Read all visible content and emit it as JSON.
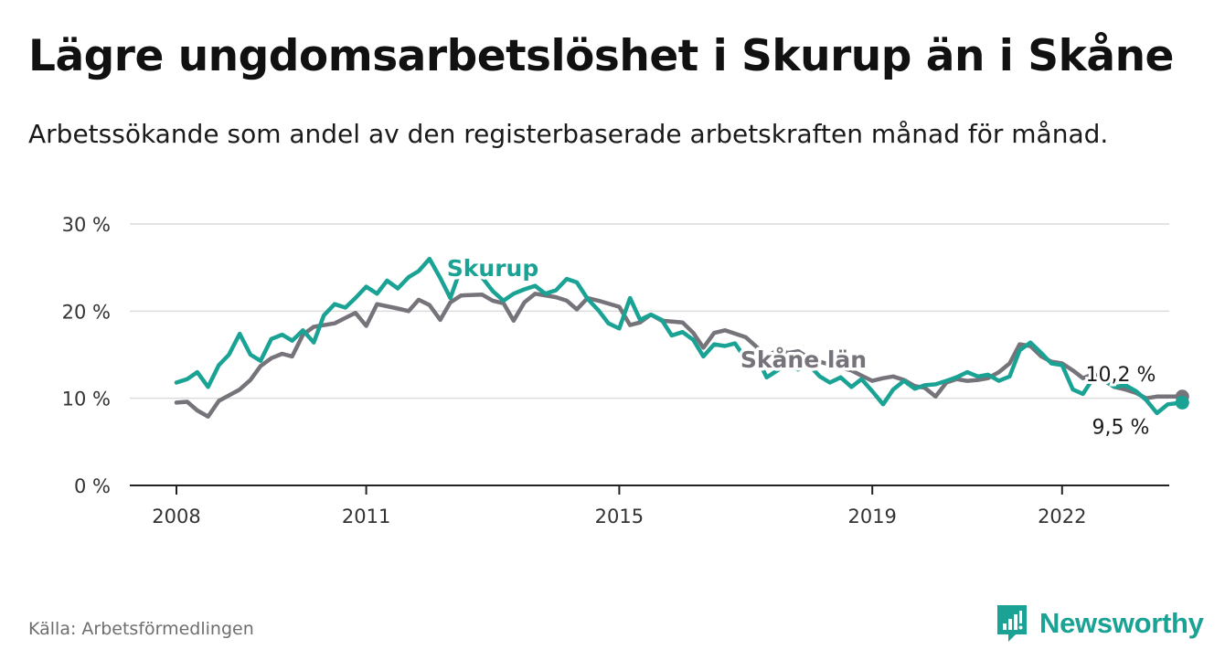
{
  "chart_data": {
    "type": "line",
    "title": "Lägre ungdomsarbetslöshet i Skurup än i Skåne",
    "subtitle": "Arbetssökande som andel av den registerbaserade arbetskraften månad för månad.",
    "xlabel": "",
    "ylabel": "",
    "ylim": [
      0,
      30
    ],
    "xlim": [
      2007.6,
      2023.8
    ],
    "y_ticks": [
      {
        "value": 0,
        "label": "0 %"
      },
      {
        "value": 10,
        "label": "10 %"
      },
      {
        "value": 20,
        "label": "20 %"
      },
      {
        "value": 30,
        "label": "30 %"
      }
    ],
    "x_ticks": [
      {
        "value": 2008,
        "label": "2008"
      },
      {
        "value": 2011,
        "label": "2011"
      },
      {
        "value": 2015,
        "label": "2015"
      },
      {
        "value": 2019,
        "label": "2019"
      },
      {
        "value": 2022,
        "label": "2022"
      }
    ],
    "grid": true,
    "series": [
      {
        "name": "Skåne län",
        "color": "#76737a",
        "end_label": "10,2 %",
        "points": [
          [
            2008.0,
            9.5
          ],
          [
            2008.17,
            9.6
          ],
          [
            2008.33,
            8.6
          ],
          [
            2008.5,
            7.9
          ],
          [
            2008.67,
            9.7
          ],
          [
            2009.0,
            11.0
          ],
          [
            2009.17,
            12.1
          ],
          [
            2009.33,
            13.7
          ],
          [
            2009.5,
            14.6
          ],
          [
            2009.67,
            15.1
          ],
          [
            2009.83,
            14.8
          ],
          [
            2010.0,
            17.3
          ],
          [
            2010.17,
            18.2
          ],
          [
            2010.5,
            18.6
          ],
          [
            2010.83,
            19.8
          ],
          [
            2011.0,
            18.3
          ],
          [
            2011.17,
            20.8
          ],
          [
            2011.5,
            20.3
          ],
          [
            2011.67,
            20.0
          ],
          [
            2011.83,
            21.3
          ],
          [
            2012.0,
            20.7
          ],
          [
            2012.17,
            19.0
          ],
          [
            2012.33,
            21.0
          ],
          [
            2012.5,
            21.8
          ],
          [
            2012.83,
            21.9
          ],
          [
            2013.0,
            21.2
          ],
          [
            2013.17,
            20.9
          ],
          [
            2013.33,
            18.9
          ],
          [
            2013.5,
            21.0
          ],
          [
            2013.67,
            22.0
          ],
          [
            2014.0,
            21.6
          ],
          [
            2014.17,
            21.2
          ],
          [
            2014.33,
            20.2
          ],
          [
            2014.5,
            21.5
          ],
          [
            2014.67,
            21.2
          ],
          [
            2015.0,
            20.5
          ],
          [
            2015.17,
            18.4
          ],
          [
            2015.33,
            18.7
          ],
          [
            2015.5,
            19.6
          ],
          [
            2015.67,
            18.9
          ],
          [
            2016.0,
            18.7
          ],
          [
            2016.17,
            17.5
          ],
          [
            2016.33,
            15.8
          ],
          [
            2016.5,
            17.5
          ],
          [
            2016.67,
            17.8
          ],
          [
            2017.0,
            17.0
          ],
          [
            2017.17,
            15.9
          ],
          [
            2017.33,
            14.8
          ],
          [
            2017.5,
            15.5
          ],
          [
            2017.67,
            15.2
          ],
          [
            2017.83,
            15.4
          ],
          [
            2018.0,
            14.6
          ],
          [
            2018.17,
            14.2
          ],
          [
            2018.5,
            13.5
          ],
          [
            2018.67,
            13.2
          ],
          [
            2018.83,
            12.6
          ],
          [
            2019.0,
            12.0
          ],
          [
            2019.17,
            12.3
          ],
          [
            2019.33,
            12.5
          ],
          [
            2019.5,
            12.1
          ],
          [
            2019.67,
            11.4
          ],
          [
            2019.83,
            11.2
          ],
          [
            2020.0,
            10.2
          ],
          [
            2020.17,
            11.8
          ],
          [
            2020.33,
            12.2
          ],
          [
            2020.5,
            12.0
          ],
          [
            2020.67,
            12.1
          ],
          [
            2020.83,
            12.3
          ],
          [
            2021.0,
            13.0
          ],
          [
            2021.17,
            14.0
          ],
          [
            2021.33,
            16.2
          ],
          [
            2021.5,
            16.0
          ],
          [
            2021.67,
            14.8
          ],
          [
            2021.83,
            14.2
          ],
          [
            2022.0,
            14.0
          ],
          [
            2022.17,
            13.2
          ],
          [
            2022.33,
            12.3
          ],
          [
            2022.5,
            12.8
          ],
          [
            2022.67,
            12.0
          ],
          [
            2022.83,
            11.3
          ],
          [
            2023.0,
            11.0
          ],
          [
            2023.17,
            10.6
          ],
          [
            2023.33,
            10.0
          ],
          [
            2023.5,
            10.2
          ],
          [
            2023.67,
            10.2
          ],
          [
            2023.9,
            10.2
          ]
        ]
      },
      {
        "name": "Skurup",
        "color": "#1aa394",
        "end_label": "9,5 %",
        "points": [
          [
            2008.0,
            11.8
          ],
          [
            2008.17,
            12.2
          ],
          [
            2008.33,
            13.0
          ],
          [
            2008.5,
            11.3
          ],
          [
            2008.67,
            13.8
          ],
          [
            2008.83,
            15.0
          ],
          [
            2009.0,
            17.4
          ],
          [
            2009.17,
            15.0
          ],
          [
            2009.33,
            14.3
          ],
          [
            2009.5,
            16.8
          ],
          [
            2009.67,
            17.3
          ],
          [
            2009.83,
            16.6
          ],
          [
            2010.0,
            17.8
          ],
          [
            2010.17,
            16.4
          ],
          [
            2010.33,
            19.5
          ],
          [
            2010.5,
            20.8
          ],
          [
            2010.67,
            20.4
          ],
          [
            2010.83,
            21.5
          ],
          [
            2011.0,
            22.8
          ],
          [
            2011.17,
            22.0
          ],
          [
            2011.33,
            23.5
          ],
          [
            2011.5,
            22.6
          ],
          [
            2011.67,
            23.9
          ],
          [
            2011.83,
            24.6
          ],
          [
            2012.0,
            26.0
          ],
          [
            2012.17,
            23.8
          ],
          [
            2012.33,
            21.5
          ],
          [
            2012.5,
            25.0
          ],
          [
            2012.67,
            24.1
          ],
          [
            2012.83,
            23.9
          ],
          [
            2013.0,
            22.3
          ],
          [
            2013.17,
            21.2
          ],
          [
            2013.33,
            22.0
          ],
          [
            2013.5,
            22.5
          ],
          [
            2013.67,
            22.9
          ],
          [
            2013.83,
            22.0
          ],
          [
            2014.0,
            22.4
          ],
          [
            2014.17,
            23.7
          ],
          [
            2014.33,
            23.3
          ],
          [
            2014.5,
            21.4
          ],
          [
            2014.67,
            20.1
          ],
          [
            2014.83,
            18.6
          ],
          [
            2015.0,
            18.0
          ],
          [
            2015.17,
            21.5
          ],
          [
            2015.33,
            19.0
          ],
          [
            2015.5,
            19.6
          ],
          [
            2015.67,
            19.0
          ],
          [
            2015.83,
            17.2
          ],
          [
            2016.0,
            17.6
          ],
          [
            2016.17,
            16.7
          ],
          [
            2016.33,
            14.8
          ],
          [
            2016.5,
            16.2
          ],
          [
            2016.67,
            16.0
          ],
          [
            2016.83,
            16.3
          ],
          [
            2017.0,
            14.5
          ],
          [
            2017.17,
            14.8
          ],
          [
            2017.33,
            12.4
          ],
          [
            2017.5,
            13.2
          ],
          [
            2017.67,
            14.2
          ],
          [
            2017.83,
            13.3
          ],
          [
            2018.0,
            13.8
          ],
          [
            2018.17,
            12.5
          ],
          [
            2018.33,
            11.8
          ],
          [
            2018.5,
            12.4
          ],
          [
            2018.67,
            11.3
          ],
          [
            2018.83,
            12.2
          ],
          [
            2019.0,
            10.8
          ],
          [
            2019.17,
            9.3
          ],
          [
            2019.33,
            11.0
          ],
          [
            2019.5,
            12.0
          ],
          [
            2019.67,
            11.1
          ],
          [
            2019.83,
            11.5
          ],
          [
            2020.0,
            11.6
          ],
          [
            2020.17,
            12.0
          ],
          [
            2020.33,
            12.4
          ],
          [
            2020.5,
            13.0
          ],
          [
            2020.67,
            12.5
          ],
          [
            2020.83,
            12.7
          ],
          [
            2021.0,
            12.0
          ],
          [
            2021.17,
            12.5
          ],
          [
            2021.33,
            15.5
          ],
          [
            2021.5,
            16.4
          ],
          [
            2021.67,
            15.2
          ],
          [
            2021.83,
            14.0
          ],
          [
            2022.0,
            13.8
          ],
          [
            2022.17,
            11.0
          ],
          [
            2022.33,
            10.5
          ],
          [
            2022.5,
            12.4
          ],
          [
            2022.67,
            12.0
          ],
          [
            2022.83,
            11.3
          ],
          [
            2023.0,
            11.5
          ],
          [
            2023.17,
            10.8
          ],
          [
            2023.33,
            9.8
          ],
          [
            2023.5,
            8.3
          ],
          [
            2023.67,
            9.3
          ],
          [
            2023.9,
            9.5
          ]
        ]
      }
    ]
  },
  "source": "Källa: Arbetsförmedlingen",
  "brand": {
    "name": "Newsworthy",
    "color": "#1aa394"
  }
}
